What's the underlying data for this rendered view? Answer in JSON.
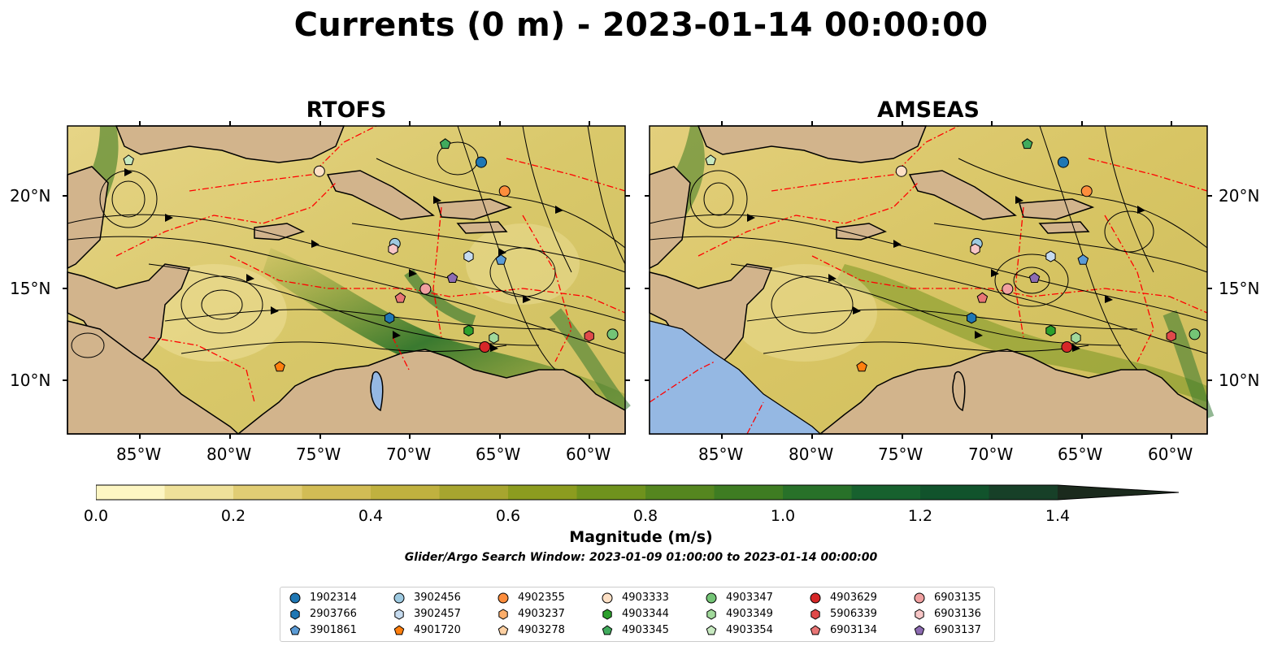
{
  "title": "Currents (0 m) - 2023-01-14 00:00:00",
  "panels": [
    {
      "title": "RTOFS"
    },
    {
      "title": "AMSEAS"
    }
  ],
  "axes": {
    "lon_labels": [
      "85°W",
      "80°W",
      "75°W",
      "70°W",
      "65°W",
      "60°W"
    ],
    "lat_labels": [
      "20°N",
      "15°N",
      "10°N"
    ]
  },
  "colorbar": {
    "label": "Magnitude (m/s)",
    "ticks": [
      "0.0",
      "0.2",
      "0.4",
      "0.6",
      "0.8",
      "1.0",
      "1.2",
      "1.4"
    ],
    "colors": [
      "#fdf6c3",
      "#efe19a",
      "#e1cd74",
      "#d2bc55",
      "#c0b13f",
      "#a7a52f",
      "#8c9c1f",
      "#6f921d",
      "#55861f",
      "#3e7c22",
      "#287129",
      "#17612e",
      "#11532c",
      "#174028",
      "#1a3222",
      "#1b2a1d"
    ]
  },
  "search_window": "Glider/Argo Search Window: 2023-01-09 01:00:00 to 2023-01-14 00:00:00",
  "legend": {
    "items": [
      {
        "id": "1902314",
        "shape": "circle",
        "color": "#1f77b4"
      },
      {
        "id": "2903766",
        "shape": "hexagon",
        "color": "#1f77b4"
      },
      {
        "id": "3901861",
        "shape": "pentagon",
        "color": "#5b9bd5"
      },
      {
        "id": "3902456",
        "shape": "circle",
        "color": "#9ecae1"
      },
      {
        "id": "3902457",
        "shape": "hexagon",
        "color": "#c6dbef"
      },
      {
        "id": "4901720",
        "shape": "pentagon",
        "color": "#ff7f0e"
      },
      {
        "id": "4902355",
        "shape": "circle",
        "color": "#fd8d3c"
      },
      {
        "id": "4903237",
        "shape": "hexagon",
        "color": "#fdae6b"
      },
      {
        "id": "4903278",
        "shape": "pentagon",
        "color": "#fdd0a2"
      },
      {
        "id": "4903333",
        "shape": "circle",
        "color": "#fde0c5"
      },
      {
        "id": "4903344",
        "shape": "hexagon",
        "color": "#2ca02c"
      },
      {
        "id": "4903345",
        "shape": "pentagon",
        "color": "#41ab5d"
      },
      {
        "id": "4903347",
        "shape": "circle",
        "color": "#74c476"
      },
      {
        "id": "4903349",
        "shape": "hexagon",
        "color": "#a1d99b"
      },
      {
        "id": "4903354",
        "shape": "pentagon",
        "color": "#c7e9c0"
      },
      {
        "id": "4903629",
        "shape": "circle",
        "color": "#d62728"
      },
      {
        "id": "5906339",
        "shape": "hexagon",
        "color": "#e04a4a"
      },
      {
        "id": "6903134",
        "shape": "pentagon",
        "color": "#e87575"
      },
      {
        "id": "6903135",
        "shape": "circle",
        "color": "#f0a0a0"
      },
      {
        "id": "6903136",
        "shape": "hexagon",
        "color": "#f7c6c6"
      },
      {
        "id": "6903137",
        "shape": "pentagon",
        "color": "#8c6bb1"
      }
    ]
  },
  "markers": [
    {
      "id": "1902314",
      "lon": -66.0,
      "lat": 22.0
    },
    {
      "id": "4902355",
      "lon": -64.7,
      "lat": 20.4
    },
    {
      "id": "4903333",
      "lon": -75.0,
      "lat": 21.5
    },
    {
      "id": "4903345",
      "lon": -68.0,
      "lat": 23.0
    },
    {
      "id": "4903354",
      "lon": -85.6,
      "lat": 22.1
    },
    {
      "id": "3902456",
      "lon": -70.8,
      "lat": 17.5
    },
    {
      "id": "6903136",
      "lon": -70.9,
      "lat": 17.2
    },
    {
      "id": "3902457",
      "lon": -66.7,
      "lat": 16.8
    },
    {
      "id": "3901861",
      "lon": -64.9,
      "lat": 16.6
    },
    {
      "id": "6903137",
      "lon": -67.6,
      "lat": 15.6
    },
    {
      "id": "6903135",
      "lon": -69.1,
      "lat": 15.0
    },
    {
      "id": "6903134",
      "lon": -70.5,
      "lat": 14.5
    },
    {
      "id": "2903766",
      "lon": -71.1,
      "lat": 13.4
    },
    {
      "id": "4903344",
      "lon": -66.7,
      "lat": 12.7
    },
    {
      "id": "4903349",
      "lon": -65.3,
      "lat": 12.3
    },
    {
      "id": "4903629",
      "lon": -65.8,
      "lat": 11.8
    },
    {
      "id": "5906339",
      "lon": -60.0,
      "lat": 12.4
    },
    {
      "id": "4903347",
      "lon": -58.7,
      "lat": 12.5
    },
    {
      "id": "4901720",
      "lon": -77.2,
      "lat": 10.7
    }
  ],
  "extent": {
    "lon_min": -89,
    "lon_max": -58,
    "lat_min": 7,
    "lat_max": 24
  }
}
